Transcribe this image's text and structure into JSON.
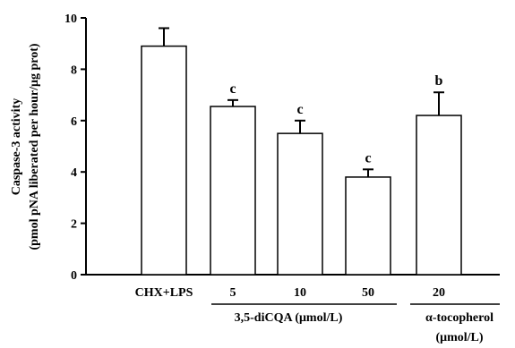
{
  "chart_data": {
    "type": "bar",
    "categories": [
      "CHX+LPS",
      "5",
      "10",
      "50",
      "20"
    ],
    "values": [
      8.9,
      6.55,
      5.5,
      3.8,
      6.2
    ],
    "errors": [
      0.7,
      0.25,
      0.5,
      0.3,
      0.9
    ],
    "significance": [
      "",
      "c",
      "c",
      "c",
      "b"
    ],
    "ylim": [
      0,
      10
    ],
    "yticks": [
      "0",
      "2",
      "4",
      "6",
      "8",
      "10"
    ],
    "ylabel_line1": "Caspase-3 activity",
    "ylabel_line2": "(pmol pNA liberated per hour/μg prot)",
    "groups": [
      {
        "label_line1": "3,5-diCQA (μmol/L)",
        "label_line2": ""
      },
      {
        "label_line1": "α-tocopherol",
        "label_line2": "(μmol/L)"
      }
    ],
    "bar_fill": "#ffffff",
    "bar_stroke": "#000000"
  }
}
